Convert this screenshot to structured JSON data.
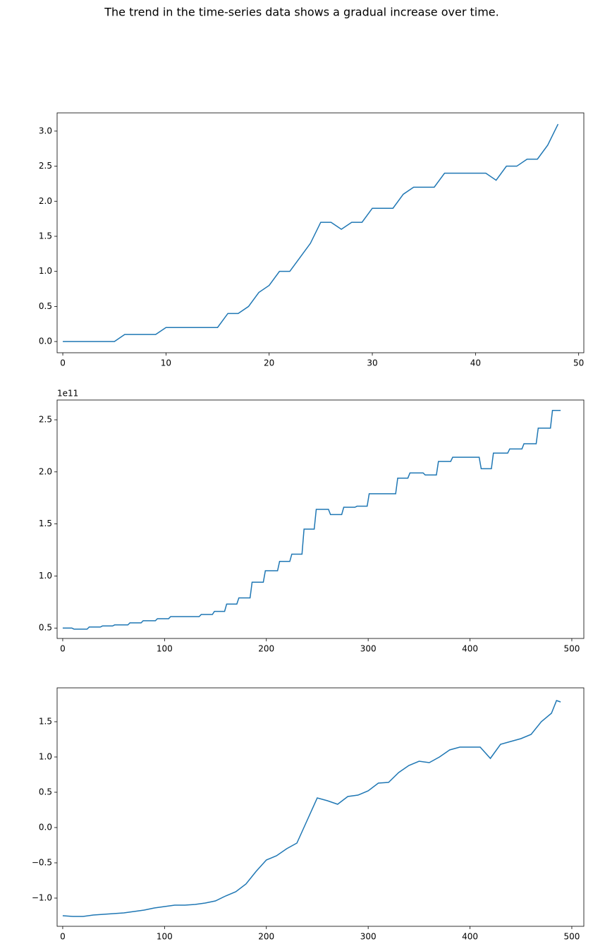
{
  "title": "The trend in the time-series data shows a gradual increase over time.",
  "chart_data": [
    {
      "type": "line",
      "color": "#1f77b4",
      "x": [
        0,
        1,
        2,
        3,
        4,
        5,
        6,
        7,
        8,
        9,
        10,
        11,
        12,
        13,
        14,
        15,
        16,
        17,
        18,
        19,
        20,
        21,
        22,
        23,
        24,
        25,
        26,
        27,
        28,
        29,
        30,
        31,
        32,
        33,
        34,
        35,
        36,
        37,
        38,
        39,
        40,
        41,
        42,
        43,
        44,
        45,
        46,
        47,
        48
      ],
      "values": [
        0,
        0,
        0,
        0,
        0,
        0,
        0.1,
        0.1,
        0.1,
        0.1,
        0.2,
        0.2,
        0.2,
        0.2,
        0.2,
        0.2,
        0.4,
        0.4,
        0.5,
        0.7,
        0.8,
        1.0,
        1.0,
        1.2,
        1.4,
        1.7,
        1.7,
        1.6,
        1.7,
        1.7,
        1.9,
        1.9,
        1.9,
        2.1,
        2.2,
        2.2,
        2.2,
        2.4,
        2.4,
        2.4,
        2.4,
        2.4,
        2.3,
        2.5,
        2.5,
        2.6,
        2.6,
        2.8,
        3.1
      ],
      "xlim": [
        -0.55,
        50.5
      ],
      "xticks": [
        0,
        10,
        20,
        30,
        40,
        50
      ],
      "ylim": [
        -0.16,
        3.26
      ],
      "yticks": [
        {
          "value": 0,
          "label": "0.0"
        },
        0.5,
        {
          "value": 1,
          "label": "1.0"
        },
        1.5,
        {
          "value": 2,
          "label": "2.0"
        },
        2.5,
        {
          "value": 3,
          "label": "3.0"
        }
      ]
    },
    {
      "type": "line",
      "color": "#1f77b4",
      "offset_label": "1e11",
      "x": [
        0,
        9,
        11,
        24,
        26,
        37,
        39,
        49,
        51,
        64,
        66,
        77,
        79,
        91,
        93,
        104,
        106,
        134,
        136,
        147,
        149,
        159,
        161,
        171,
        173,
        184,
        186,
        197,
        199,
        211,
        213,
        223,
        225,
        235,
        237,
        247,
        249,
        261,
        263,
        274,
        276,
        287,
        289,
        299,
        301,
        327,
        329,
        339,
        341,
        354,
        356,
        367,
        369,
        381,
        383,
        409,
        411,
        421,
        423,
        437,
        439,
        451,
        453,
        465,
        467,
        479,
        481,
        489
      ],
      "values": [
        0.5,
        0.5,
        0.49,
        0.49,
        0.51,
        0.51,
        0.52,
        0.52,
        0.53,
        0.53,
        0.55,
        0.55,
        0.57,
        0.57,
        0.59,
        0.59,
        0.61,
        0.61,
        0.63,
        0.63,
        0.66,
        0.66,
        0.73,
        0.73,
        0.79,
        0.79,
        0.94,
        0.94,
        1.05,
        1.05,
        1.14,
        1.14,
        1.21,
        1.21,
        1.45,
        1.45,
        1.64,
        1.64,
        1.59,
        1.59,
        1.66,
        1.66,
        1.67,
        1.67,
        1.79,
        1.79,
        1.94,
        1.94,
        1.99,
        1.99,
        1.97,
        1.97,
        2.1,
        2.1,
        2.14,
        2.14,
        2.03,
        2.03,
        2.18,
        2.18,
        2.22,
        2.22,
        2.27,
        2.27,
        2.42,
        2.42,
        2.59,
        2.59
      ],
      "xlim": [
        -5.5,
        511.8
      ],
      "xticks": [
        0,
        100,
        200,
        300,
        400,
        500
      ],
      "ylim": [
        0.4,
        2.69
      ],
      "yticks": [
        0.5,
        {
          "value": 1,
          "label": "1.0"
        },
        1.5,
        {
          "value": 2,
          "label": "2.0"
        },
        2.5
      ]
    },
    {
      "type": "line",
      "color": "#1f77b4",
      "x": [
        0,
        10,
        20,
        30,
        40,
        50,
        60,
        70,
        80,
        90,
        100,
        110,
        120,
        130,
        140,
        150,
        160,
        170,
        180,
        190,
        200,
        210,
        220,
        230,
        240,
        250,
        260,
        270,
        280,
        290,
        300,
        310,
        320,
        330,
        340,
        350,
        360,
        370,
        380,
        390,
        400,
        410,
        420,
        430,
        440,
        450,
        460,
        470,
        480,
        485,
        489
      ],
      "values": [
        -1.25,
        -1.26,
        -1.26,
        -1.24,
        -1.23,
        -1.22,
        -1.21,
        -1.19,
        -1.17,
        -1.14,
        -1.12,
        -1.1,
        -1.1,
        -1.09,
        -1.07,
        -1.04,
        -0.97,
        -0.91,
        -0.8,
        -0.62,
        -0.46,
        -0.4,
        -0.3,
        -0.22,
        0.1,
        0.42,
        0.38,
        0.33,
        0.44,
        0.46,
        0.52,
        0.63,
        0.64,
        0.78,
        0.88,
        0.94,
        0.92,
        1.0,
        1.1,
        1.14,
        1.14,
        1.14,
        0.98,
        1.18,
        1.22,
        1.26,
        1.32,
        1.5,
        1.62,
        1.8,
        1.78
      ],
      "xlim": [
        -5.5,
        511.8
      ],
      "xticks": [
        0,
        100,
        200,
        300,
        400,
        500
      ],
      "ylim": [
        -1.4,
        1.98
      ],
      "yticks": [
        {
          "value": -1,
          "label": "−1.0"
        },
        {
          "value": -0.5,
          "label": "−0.5"
        },
        {
          "value": 0,
          "label": "0.0"
        },
        0.5,
        {
          "value": 1,
          "label": "1.0"
        },
        1.5
      ]
    }
  ]
}
